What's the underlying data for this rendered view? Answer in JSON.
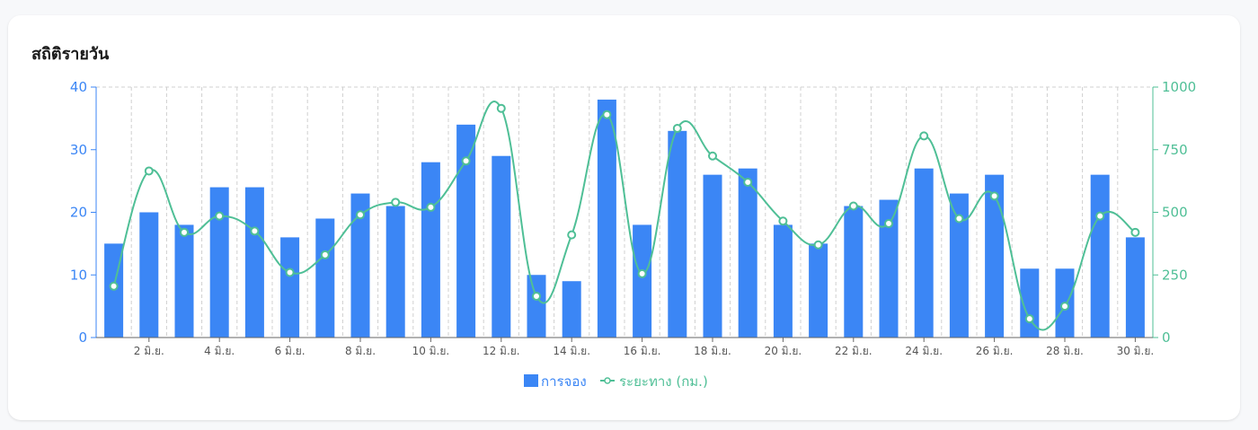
{
  "card": {
    "title": "สถิติรายวัน"
  },
  "colors": {
    "bookings": "#3b86f5",
    "distance": "#4fbf96",
    "grid": "#d0d0d0"
  },
  "chart_data": {
    "type": "bar",
    "title": "",
    "xlabel": "",
    "ylabel": "",
    "x": [
      1,
      2,
      3,
      4,
      5,
      6,
      7,
      8,
      9,
      10,
      11,
      12,
      13,
      14,
      15,
      16,
      17,
      18,
      19,
      20,
      21,
      22,
      23,
      24,
      25,
      26,
      27,
      28,
      29,
      30
    ],
    "x_tick_labels": [
      "2 มิ.ย.",
      "4 มิ.ย.",
      "6 มิ.ย.",
      "8 มิ.ย.",
      "10 มิ.ย.",
      "12 มิ.ย.",
      "14 มิ.ย.",
      "16 มิ.ย.",
      "18 มิ.ย.",
      "20 มิ.ย.",
      "22 มิ.ย.",
      "24 มิ.ย.",
      "26 มิ.ย.",
      "28 มิ.ย.",
      "30 มิ.ย."
    ],
    "ylim_left": [
      0,
      40
    ],
    "yticks_left": [
      "0",
      "10",
      "20",
      "30",
      "40"
    ],
    "ylim_right": [
      0,
      1000
    ],
    "yticks_right": [
      "0",
      "250",
      "500",
      "750",
      "1000"
    ],
    "grid": "vertical-dashed",
    "legend_position": "bottom",
    "series": [
      {
        "name": "การจอง",
        "type": "bar",
        "axis": "left",
        "values": [
          15,
          20,
          18,
          24,
          24,
          16,
          19,
          23,
          21,
          28,
          34,
          29,
          10,
          9,
          38,
          18,
          33,
          26,
          27,
          18,
          15,
          21,
          22,
          27,
          23,
          26,
          11,
          11,
          26,
          16
        ]
      },
      {
        "name": "ระยะทาง (กม.)",
        "type": "line",
        "axis": "right",
        "values": [
          205,
          665,
          420,
          485,
          425,
          260,
          330,
          490,
          540,
          520,
          705,
          915,
          165,
          410,
          890,
          255,
          835,
          725,
          620,
          465,
          370,
          525,
          455,
          805,
          475,
          565,
          75,
          125,
          485,
          420
        ]
      }
    ]
  }
}
